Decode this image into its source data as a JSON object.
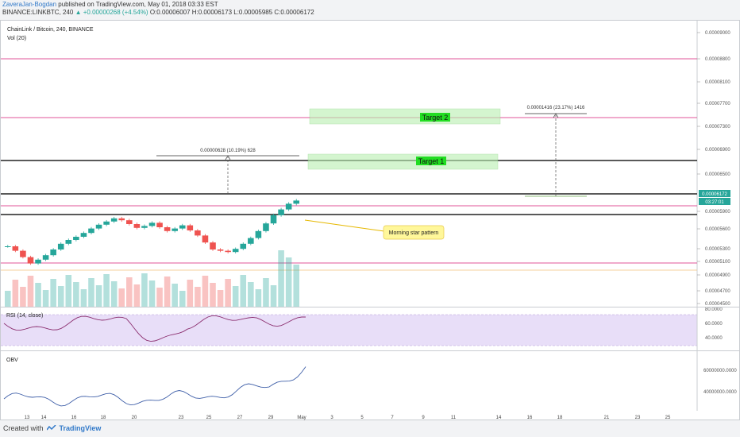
{
  "header": {
    "author": "ZaveraJan-Bogdan",
    "published": "published on TradingView.com, May 01, 2018 03:33 EST",
    "symbol_line": "BINANCE:LINKBTC, 240",
    "change": "▲ +0.00000268 (+4.54%)",
    "ohlc": "O:0.00006007 H:0.00006173 L:0.00005985 C:0.00006172"
  },
  "chart": {
    "title": "ChainLink / Bitcoin, 240, BINANCE",
    "vol_label": "Vol (20)",
    "price_labels": [
      "0.00009000",
      "0.00008800",
      "0.00008100",
      "0.00007700",
      "0.00007300",
      "0.00006900",
      "0.00006500",
      "0.00005900",
      "0.00005600",
      "0.00005300",
      "0.00005100",
      "0.00004900",
      "0.00004700",
      "0.00004500"
    ],
    "current_price": "0.00006172",
    "countdown": "03:27:01",
    "target1_label": "Target 1",
    "target2_label": "Target 2",
    "measure1_label": "0.00000628 (10.19%) 628",
    "measure2_label": "0.00001416 (23.17%) 1416",
    "callout": "Morning star pattern"
  },
  "rsi": {
    "label": "RSI (14, close)",
    "levels": [
      "80.0000",
      "60.0000",
      "40.0000"
    ]
  },
  "obv": {
    "label": "OBV",
    "levels": [
      "60000000.0000",
      "40000000.0000"
    ]
  },
  "x_axis": [
    "13",
    "14",
    "16",
    "18",
    "20",
    "23",
    "25",
    "27",
    "29",
    "May",
    "3",
    "5",
    "7",
    "9",
    "11",
    "14",
    "16",
    "18",
    "21",
    "23",
    "25"
  ],
  "footer": {
    "created": "Created with",
    "brand": "TradingView"
  },
  "colors": {
    "up": "#26a69a",
    "down": "#ef5350",
    "level_pink": "#e0559a",
    "target_fill": "#b9f0b0",
    "target_label_bg": "#22dd22",
    "rsi_line": "#8b2e6f",
    "obv_line": "#3f5fa8",
    "callout_bg": "#fff79a"
  },
  "chart_data": [
    {
      "type": "candlestick",
      "title": "ChainLink / Bitcoin, 240, BINANCE",
      "ylim": [
        4.5e-05,
        9e-05
      ],
      "last_price": 6.172e-05,
      "close_approx": [
        5.45e-05,
        5.38e-05,
        5.28e-05,
        5.18e-05,
        5.24e-05,
        5.31e-05,
        5.4e-05,
        5.49e-05,
        5.55e-05,
        5.6e-05,
        5.66e-05,
        5.73e-05,
        5.79e-05,
        5.84e-05,
        5.89e-05,
        5.86e-05,
        5.8e-05,
        5.74e-05,
        5.77e-05,
        5.82e-05,
        5.75e-05,
        5.69e-05,
        5.73e-05,
        5.78e-05,
        5.7e-05,
        5.62e-05,
        5.51e-05,
        5.4e-05,
        5.38e-05,
        5.36e-05,
        5.41e-05,
        5.49e-05,
        5.58e-05,
        5.69e-05,
        5.81e-05,
        5.94e-05,
        6.03e-05,
        6.12e-05,
        6.17e-05
      ],
      "volume_note": "volume bars, spike near May 1"
    },
    {
      "type": "line",
      "title": "RSI (14, close)",
      "ylim": [
        30,
        80
      ],
      "levels": [
        80,
        60,
        40
      ]
    },
    {
      "type": "line",
      "title": "OBV",
      "levels": [
        60000000,
        40000000
      ]
    }
  ]
}
